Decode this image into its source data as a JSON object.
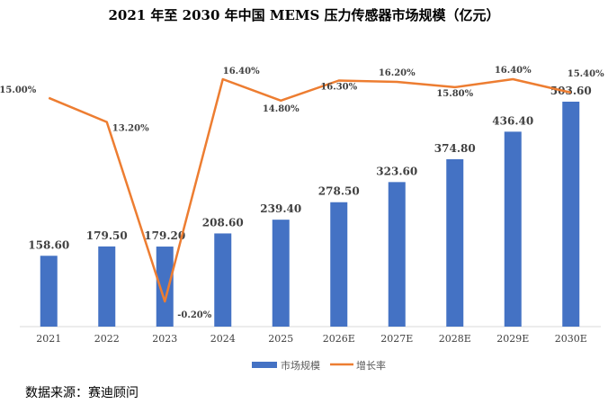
{
  "chart_data": {
    "type": "bar",
    "title": "2021 年至 2030 年中国 MEMS 压力传感器市场规模（亿元）",
    "categories": [
      "2021",
      "2022",
      "2023",
      "2024",
      "2025",
      "2026E",
      "2027E",
      "2028E",
      "2029E",
      "2030E"
    ],
    "series": [
      {
        "name": "市场规模",
        "type": "bar",
        "color": "#4472C4",
        "values": [
          158.6,
          179.5,
          179.2,
          208.6,
          239.4,
          278.5,
          323.6,
          374.8,
          436.4,
          503.6
        ],
        "labels": [
          "158.60",
          "179.50",
          "179.20",
          "208.60",
          "239.40",
          "278.50",
          "323.60",
          "374.80",
          "436.40",
          "503.60"
        ]
      },
      {
        "name": "增长率",
        "type": "line",
        "color": "#ED7D31",
        "values": [
          15.0,
          13.2,
          -0.2,
          16.4,
          14.8,
          16.3,
          16.2,
          15.8,
          16.4,
          15.4
        ],
        "labels": [
          "15.00%",
          "13.20%",
          "-0.20%",
          "16.40%",
          "14.80%",
          "16.30%",
          "16.20%",
          "15.80%",
          "16.40%",
          "15.40%"
        ]
      }
    ],
    "legend": "bottom",
    "grid": false
  },
  "source": "数据来源：赛迪顾问"
}
